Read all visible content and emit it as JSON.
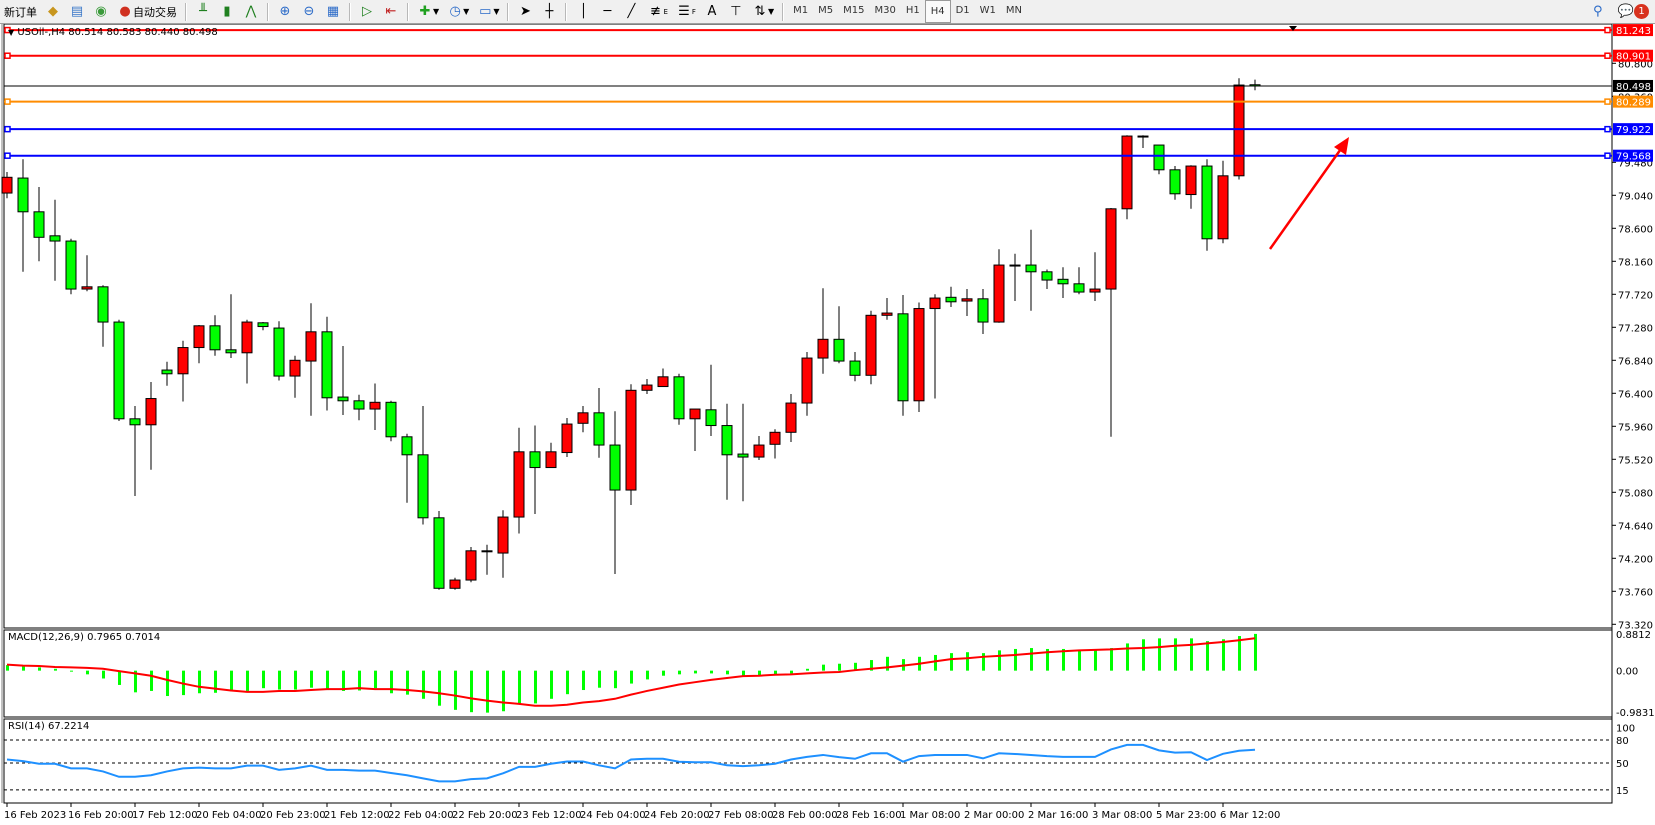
{
  "toolbar": {
    "new_order": "新订单",
    "auto_trading": "自动交易",
    "timeframes": [
      "M1",
      "M5",
      "M15",
      "M30",
      "H1",
      "H4",
      "D1",
      "W1",
      "MN"
    ],
    "active_timeframe": "H4",
    "notification_count": "1",
    "drawing_tool_letters": {
      "text": "A",
      "fibo_e": "E",
      "fibo_f": "F"
    }
  },
  "chart": {
    "header": "USOil-,H4  80.514 80.583 80.440 80.498",
    "colors": {
      "bull_body": "#ff0000",
      "bear_body": "#00ff00",
      "wick": "#000000",
      "macd_hist": "#00ff00",
      "macd_signal": "#ff0000",
      "rsi": "#1e90ff",
      "arrow": "#ff0000"
    },
    "price_ticks": [
      "80.800",
      "80.360",
      "79.480",
      "79.040",
      "78.600",
      "78.160",
      "77.720",
      "77.280",
      "76.840",
      "76.400",
      "75.960",
      "75.520",
      "75.080",
      "74.640",
      "74.200",
      "73.760",
      "73.320"
    ],
    "hlines": [
      {
        "price": "81.243",
        "color": "#ff0000"
      },
      {
        "price": "80.901",
        "color": "#ff0000"
      },
      {
        "price": "80.498",
        "color": "#000000"
      },
      {
        "price": "80.289",
        "color": "#ff8c00"
      },
      {
        "price": "79.922",
        "color": "#0000ff"
      },
      {
        "price": "79.568",
        "color": "#0000ff"
      }
    ],
    "time_labels": [
      "16 Feb 2023",
      "16 Feb 20:00",
      "17 Feb 12:00",
      "20 Feb 04:00",
      "20 Feb 23:00",
      "21 Feb 12:00",
      "22 Feb 04:00",
      "22 Feb 20:00",
      "23 Feb 12:00",
      "24 Feb 04:00",
      "24 Feb 20:00",
      "27 Feb 08:00",
      "28 Feb 00:00",
      "28 Feb 16:00",
      "1 Mar 08:00",
      "2 Mar 00:00",
      "2 Mar 16:00",
      "3 Mar 08:00",
      "5 Mar 23:00",
      "6 Mar 12:00"
    ],
    "macd": {
      "label": "MACD(12,26,9) 0.7965 0.7014",
      "max_label": "0.8812",
      "zero_label": "0.00",
      "min_label": "-0.9831"
    },
    "rsi": {
      "label": "RSI(14) 67.2214",
      "levels": [
        "100",
        "80",
        "50",
        "15"
      ]
    }
  },
  "chart_data": {
    "type": "candlestick",
    "symbol": "USOil-",
    "timeframe": "H4",
    "ylim": [
      73.27,
      81.32
    ],
    "ohlc": [
      [
        79.07,
        79.35,
        79.0,
        79.28
      ],
      [
        79.27,
        79.52,
        78.02,
        78.82
      ],
      [
        78.82,
        79.15,
        78.16,
        78.48
      ],
      [
        78.5,
        78.98,
        77.9,
        78.43
      ],
      [
        78.43,
        78.46,
        77.72,
        77.79
      ],
      [
        77.79,
        78.24,
        77.76,
        77.82
      ],
      [
        77.82,
        77.84,
        77.02,
        77.35
      ],
      [
        77.35,
        77.38,
        76.03,
        76.06
      ],
      [
        76.06,
        76.23,
        75.03,
        75.98
      ],
      [
        75.98,
        76.55,
        75.38,
        76.33
      ],
      [
        76.71,
        76.82,
        76.5,
        76.66
      ],
      [
        76.66,
        77.1,
        76.29,
        77.01
      ],
      [
        77.01,
        77.31,
        76.8,
        77.3
      ],
      [
        77.3,
        77.44,
        76.9,
        76.98
      ],
      [
        76.98,
        77.72,
        76.87,
        76.94
      ],
      [
        76.94,
        77.38,
        76.53,
        77.35
      ],
      [
        77.34,
        77.35,
        77.24,
        77.29
      ],
      [
        77.27,
        77.36,
        76.57,
        76.63
      ],
      [
        76.63,
        76.9,
        76.34,
        76.84
      ],
      [
        76.83,
        77.6,
        76.1,
        77.22
      ],
      [
        77.22,
        77.42,
        76.17,
        76.34
      ],
      [
        76.35,
        77.03,
        76.11,
        76.3
      ],
      [
        76.3,
        76.38,
        76.04,
        76.19
      ],
      [
        76.19,
        76.53,
        75.91,
        76.28
      ],
      [
        76.28,
        76.3,
        75.76,
        75.82
      ],
      [
        75.82,
        75.86,
        74.94,
        75.58
      ],
      [
        75.58,
        76.23,
        74.65,
        74.74
      ],
      [
        74.74,
        74.83,
        73.78,
        73.8
      ],
      [
        73.8,
        73.94,
        73.78,
        73.91
      ],
      [
        73.91,
        74.35,
        73.88,
        74.3
      ],
      [
        74.29,
        74.38,
        73.98,
        74.3
      ],
      [
        74.27,
        74.84,
        73.94,
        74.75
      ],
      [
        74.75,
        75.94,
        74.53,
        75.62
      ],
      [
        75.62,
        75.97,
        74.79,
        75.41
      ],
      [
        75.41,
        75.74,
        75.41,
        75.62
      ],
      [
        75.61,
        76.07,
        75.55,
        75.99
      ],
      [
        76.0,
        76.23,
        75.88,
        76.14
      ],
      [
        76.14,
        76.47,
        75.54,
        75.71
      ],
      [
        75.71,
        76.16,
        73.99,
        75.11
      ],
      [
        75.11,
        76.52,
        74.91,
        76.44
      ],
      [
        76.44,
        76.59,
        76.39,
        76.51
      ],
      [
        76.49,
        76.73,
        76.49,
        76.62
      ],
      [
        76.62,
        76.66,
        75.98,
        76.06
      ],
      [
        76.06,
        76.19,
        75.63,
        76.19
      ],
      [
        76.18,
        76.78,
        75.83,
        75.97
      ],
      [
        75.97,
        76.26,
        74.98,
        75.58
      ],
      [
        75.59,
        76.26,
        74.96,
        75.55
      ],
      [
        75.55,
        75.83,
        75.51,
        75.71
      ],
      [
        75.72,
        75.92,
        75.53,
        75.88
      ],
      [
        75.88,
        76.39,
        75.75,
        76.27
      ],
      [
        76.27,
        76.95,
        76.1,
        76.87
      ],
      [
        76.87,
        77.8,
        76.66,
        77.12
      ],
      [
        77.12,
        77.56,
        76.8,
        76.83
      ],
      [
        76.83,
        76.95,
        76.56,
        76.64
      ],
      [
        76.64,
        77.5,
        76.52,
        77.44
      ],
      [
        77.44,
        77.67,
        77.38,
        77.47
      ],
      [
        77.46,
        77.71,
        76.1,
        76.3
      ],
      [
        76.3,
        77.61,
        76.15,
        77.53
      ],
      [
        77.53,
        77.72,
        76.33,
        77.67
      ],
      [
        77.68,
        77.82,
        77.55,
        77.62
      ],
      [
        77.63,
        77.79,
        77.43,
        77.66
      ],
      [
        77.66,
        77.79,
        77.19,
        77.35
      ],
      [
        77.35,
        78.32,
        77.34,
        78.11
      ],
      [
        78.11,
        78.26,
        77.63,
        78.1
      ],
      [
        78.11,
        78.58,
        77.5,
        78.02
      ],
      [
        78.02,
        78.05,
        77.79,
        77.91
      ],
      [
        77.92,
        78.08,
        77.67,
        77.86
      ],
      [
        77.86,
        78.08,
        77.72,
        77.75
      ],
      [
        77.75,
        78.28,
        77.63,
        77.79
      ],
      [
        77.79,
        78.87,
        75.82,
        78.86
      ],
      [
        78.86,
        79.84,
        78.72,
        79.83
      ],
      [
        79.83,
        79.84,
        79.67,
        79.82
      ],
      [
        79.71,
        79.71,
        79.32,
        79.38
      ],
      [
        79.38,
        79.43,
        78.98,
        79.06
      ],
      [
        79.05,
        79.44,
        78.86,
        79.43
      ],
      [
        79.43,
        79.52,
        78.3,
        78.46
      ],
      [
        78.46,
        79.5,
        78.4,
        79.3
      ],
      [
        79.3,
        80.6,
        79.25,
        80.51
      ],
      [
        80.514,
        80.583,
        80.44,
        80.498
      ]
    ],
    "macd_hist": [
      0.12,
      0.09,
      0.07,
      0.04,
      -0.02,
      -0.08,
      -0.17,
      -0.31,
      -0.47,
      -0.44,
      -0.55,
      -0.53,
      -0.49,
      -0.48,
      -0.45,
      -0.44,
      -0.38,
      -0.41,
      -0.41,
      -0.37,
      -0.42,
      -0.44,
      -0.43,
      -0.38,
      -0.49,
      -0.52,
      -0.61,
      -0.76,
      -0.85,
      -0.9,
      -0.91,
      -0.88,
      -0.73,
      -0.71,
      -0.61,
      -0.51,
      -0.42,
      -0.37,
      -0.38,
      -0.28,
      -0.19,
      -0.11,
      -0.08,
      -0.06,
      -0.06,
      -0.08,
      -0.11,
      -0.1,
      -0.08,
      -0.06,
      0.04,
      0.13,
      0.15,
      0.17,
      0.23,
      0.3,
      0.25,
      0.3,
      0.34,
      0.38,
      0.4,
      0.38,
      0.44,
      0.47,
      0.49,
      0.47,
      0.47,
      0.44,
      0.44,
      0.49,
      0.59,
      0.68,
      0.7,
      0.7,
      0.7,
      0.64,
      0.68,
      0.75,
      0.7965
    ],
    "macd_signal": [
      0.13,
      0.11,
      0.1,
      0.08,
      0.07,
      0.06,
      0.04,
      -0.01,
      -0.06,
      -0.11,
      -0.2,
      -0.28,
      -0.35,
      -0.39,
      -0.43,
      -0.46,
      -0.46,
      -0.44,
      -0.44,
      -0.42,
      -0.4,
      -0.4,
      -0.38,
      -0.4,
      -0.4,
      -0.42,
      -0.45,
      -0.49,
      -0.54,
      -0.6,
      -0.65,
      -0.69,
      -0.72,
      -0.76,
      -0.76,
      -0.74,
      -0.69,
      -0.66,
      -0.61,
      -0.52,
      -0.44,
      -0.37,
      -0.3,
      -0.25,
      -0.2,
      -0.16,
      -0.12,
      -0.11,
      -0.09,
      -0.08,
      -0.06,
      -0.04,
      -0.03,
      0.01,
      0.04,
      0.07,
      0.11,
      0.15,
      0.2,
      0.25,
      0.27,
      0.3,
      0.32,
      0.34,
      0.37,
      0.4,
      0.42,
      0.44,
      0.45,
      0.46,
      0.48,
      0.49,
      0.51,
      0.54,
      0.56,
      0.59,
      0.62,
      0.66,
      0.7014
    ],
    "macd_range": [
      -0.9831,
      0.8812
    ],
    "rsi": [
      54.6,
      52.5,
      49,
      49,
      43,
      43,
      39,
      32,
      32,
      34,
      39,
      43,
      44,
      43,
      43,
      46.6,
      46.6,
      41,
      43,
      46.6,
      41,
      41,
      40,
      40,
      37,
      34,
      30,
      26,
      26,
      29,
      30,
      36.5,
      45,
      45,
      49,
      52,
      52,
      47,
      43,
      54.6,
      55.5,
      55.5,
      51.7,
      51,
      51,
      47,
      46,
      47,
      49,
      54.6,
      58,
      60.5,
      57.6,
      55.5,
      62.7,
      62.7,
      51.7,
      59,
      60.5,
      60.5,
      60.5,
      56,
      62.7,
      61.8,
      60.5,
      59,
      58,
      58,
      58,
      67.7,
      73.6,
      73.6,
      66.5,
      63.5,
      64,
      53.8,
      62,
      66,
      67.2214
    ]
  }
}
